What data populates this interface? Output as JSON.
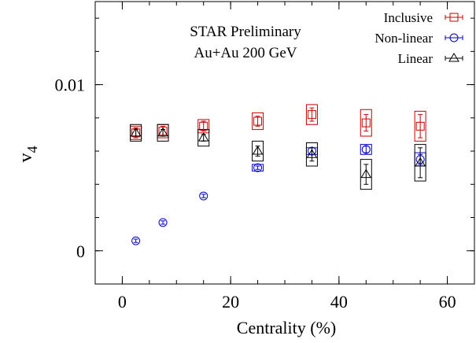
{
  "chart_data": {
    "type": "scatter",
    "xlabel": "Centrality (%)",
    "ylabel": "v",
    "ylabel_subscript": "4",
    "xlim": [
      -5,
      65
    ],
    "ylim": [
      -0.002,
      0.015
    ],
    "x_ticks": [
      0,
      20,
      40,
      60
    ],
    "x_tick_labels": [
      "0",
      "20",
      "40",
      "60"
    ],
    "x_minor_step": 5,
    "y_ticks": [
      0,
      0.01
    ],
    "y_tick_labels": [
      "0",
      "0.01"
    ],
    "y_minor_step": 0.002,
    "annotations": [
      "STAR Preliminary",
      "Au+Au 200 GeV"
    ],
    "legend_position": "top-right",
    "series": [
      {
        "name": "Inclusive",
        "marker": "square",
        "color": "#cc0000",
        "points": [
          {
            "x": 2.5,
            "y": 0.0071,
            "err": 0.0003,
            "sys": 0.0004
          },
          {
            "x": 7.5,
            "y": 0.0072,
            "err": 0.0003,
            "sys": 0.0004
          },
          {
            "x": 15,
            "y": 0.0075,
            "err": 0.0003,
            "sys": 0.0004
          },
          {
            "x": 25,
            "y": 0.0078,
            "err": 0.0003,
            "sys": 0.0005
          },
          {
            "x": 35,
            "y": 0.0082,
            "err": 0.0004,
            "sys": 0.0006
          },
          {
            "x": 45,
            "y": 0.0077,
            "err": 0.0005,
            "sys": 0.0008
          },
          {
            "x": 55,
            "y": 0.0075,
            "err": 0.0007,
            "sys": 0.0009
          }
        ]
      },
      {
        "name": "Non-linear",
        "marker": "circle",
        "color": "#0000cc",
        "points": [
          {
            "x": 2.5,
            "y": 0.0006,
            "err": 0.0001,
            "sys": 0
          },
          {
            "x": 7.5,
            "y": 0.0017,
            "err": 0.0001,
            "sys": 0
          },
          {
            "x": 15,
            "y": 0.0033,
            "err": 0.0001,
            "sys": 0
          },
          {
            "x": 25,
            "y": 0.005,
            "err": 0.0001,
            "sys": 0.0002
          },
          {
            "x": 35,
            "y": 0.006,
            "err": 0.0002,
            "sys": 0.0002
          },
          {
            "x": 45,
            "y": 0.0061,
            "err": 0.0002,
            "sys": 0.0003
          },
          {
            "x": 55,
            "y": 0.0055,
            "err": 0.0003,
            "sys": 0.0004
          }
        ]
      },
      {
        "name": "Linear",
        "marker": "triangle",
        "color": "#000000",
        "points": [
          {
            "x": 2.5,
            "y": 0.0071,
            "err": 0.0002,
            "sys": 0.0005
          },
          {
            "x": 7.5,
            "y": 0.0071,
            "err": 0.0002,
            "sys": 0.0005
          },
          {
            "x": 15,
            "y": 0.0068,
            "err": 0.0002,
            "sys": 0.0005
          },
          {
            "x": 25,
            "y": 0.006,
            "err": 0.0003,
            "sys": 0.0006
          },
          {
            "x": 35,
            "y": 0.0058,
            "err": 0.0004,
            "sys": 0.0007
          },
          {
            "x": 45,
            "y": 0.0046,
            "err": 0.0006,
            "sys": 0.0009
          },
          {
            "x": 55,
            "y": 0.0053,
            "err": 0.0009,
            "sys": 0.0011
          }
        ]
      }
    ]
  }
}
